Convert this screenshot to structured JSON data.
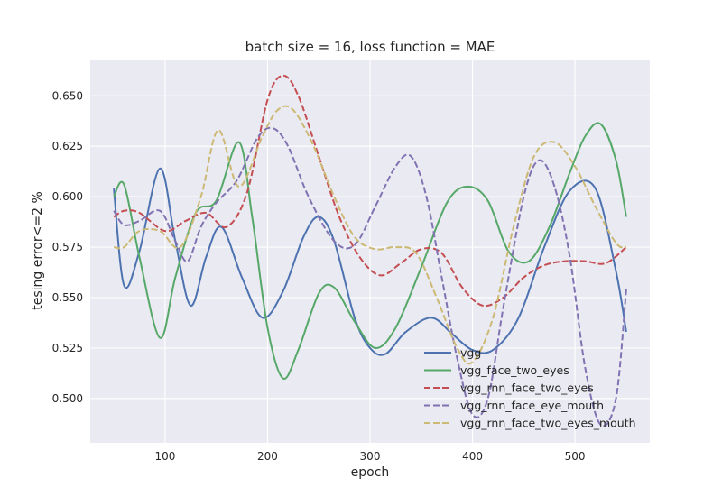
{
  "chart_data": {
    "type": "line",
    "title": "batch size = 16, loss function = MAE",
    "xlabel": "epoch",
    "ylabel": "tesing error<=2 %",
    "xlim": [
      27,
      573
    ],
    "ylim": [
      0.478,
      0.668
    ],
    "xticks": [
      100,
      200,
      300,
      400,
      500
    ],
    "yticks": [
      0.5,
      0.525,
      0.55,
      0.575,
      0.6,
      0.625,
      0.65
    ],
    "grid": true,
    "legend_position": "lower-right",
    "series": [
      {
        "name": "vgg",
        "color": "#4c72b0",
        "dash": "solid",
        "x": [
          50,
          60,
          75,
          95,
          110,
          125,
          140,
          155,
          175,
          195,
          215,
          235,
          250,
          265,
          285,
          300,
          315,
          335,
          360,
          380,
          400,
          420,
          445,
          470,
          495,
          520,
          540,
          550
        ],
        "y": [
          0.604,
          0.556,
          0.573,
          0.614,
          0.578,
          0.546,
          0.57,
          0.585,
          0.56,
          0.54,
          0.553,
          0.58,
          0.59,
          0.578,
          0.54,
          0.525,
          0.522,
          0.533,
          0.54,
          0.532,
          0.524,
          0.524,
          0.54,
          0.575,
          0.603,
          0.604,
          0.563,
          0.533
        ]
      },
      {
        "name": "vgg_face_two_eyes",
        "color": "#55a868",
        "dash": "solid",
        "x": [
          50,
          60,
          75,
          95,
          110,
          130,
          150,
          172,
          185,
          200,
          215,
          230,
          250,
          265,
          285,
          305,
          325,
          350,
          375,
          395,
          415,
          435,
          455,
          475,
          495,
          510,
          525,
          540,
          550
        ],
        "y": [
          0.6,
          0.606,
          0.57,
          0.53,
          0.56,
          0.592,
          0.598,
          0.627,
          0.59,
          0.535,
          0.51,
          0.524,
          0.552,
          0.555,
          0.538,
          0.525,
          0.535,
          0.565,
          0.597,
          0.605,
          0.598,
          0.573,
          0.568,
          0.585,
          0.612,
          0.63,
          0.636,
          0.618,
          0.59
        ]
      },
      {
        "name": "vgg_rnn_face_two_eyes",
        "color": "#c44e52",
        "dash": "dashed",
        "x": [
          50,
          60,
          75,
          100,
          120,
          140,
          160,
          180,
          200,
          215,
          230,
          250,
          270,
          290,
          310,
          330,
          350,
          370,
          390,
          410,
          430,
          450,
          470,
          490,
          510,
          530,
          550
        ],
        "y": [
          0.59,
          0.593,
          0.592,
          0.583,
          0.588,
          0.592,
          0.585,
          0.602,
          0.648,
          0.66,
          0.65,
          0.62,
          0.59,
          0.57,
          0.561,
          0.567,
          0.574,
          0.572,
          0.555,
          0.546,
          0.55,
          0.56,
          0.566,
          0.568,
          0.568,
          0.567,
          0.575
        ]
      },
      {
        "name": "vgg_rnn_face_eye_mouth",
        "color": "#8172b2",
        "dash": "dashed",
        "x": [
          50,
          60,
          75,
          95,
          110,
          122,
          135,
          150,
          170,
          190,
          205,
          220,
          240,
          265,
          285,
          305,
          325,
          340,
          355,
          370,
          385,
          400,
          415,
          430,
          450,
          465,
          480,
          495,
          510,
          525,
          540,
          550
        ],
        "y": [
          0.593,
          0.586,
          0.588,
          0.593,
          0.578,
          0.568,
          0.585,
          0.597,
          0.608,
          0.629,
          0.634,
          0.625,
          0.6,
          0.578,
          0.576,
          0.595,
          0.615,
          0.62,
          0.6,
          0.56,
          0.52,
          0.492,
          0.5,
          0.545,
          0.6,
          0.618,
          0.605,
          0.57,
          0.515,
          0.487,
          0.5,
          0.554
        ]
      },
      {
        "name": "vgg_rnn_face_two_eyes_mouth",
        "color": "#ccb974",
        "dash": "dashed",
        "x": [
          50,
          60,
          75,
          95,
          115,
          135,
          152,
          172,
          195,
          210,
          225,
          245,
          265,
          285,
          305,
          325,
          345,
          365,
          385,
          400,
          420,
          440,
          460,
          480,
          500,
          520,
          540,
          550
        ],
        "y": [
          0.575,
          0.575,
          0.583,
          0.583,
          0.575,
          0.6,
          0.633,
          0.605,
          0.63,
          0.643,
          0.643,
          0.625,
          0.6,
          0.58,
          0.574,
          0.575,
          0.572,
          0.55,
          0.525,
          0.518,
          0.54,
          0.585,
          0.62,
          0.627,
          0.615,
          0.595,
          0.577,
          0.575
        ]
      }
    ]
  }
}
